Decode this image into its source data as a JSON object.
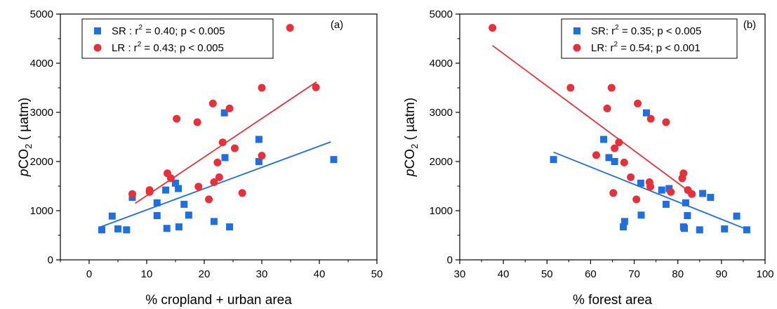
{
  "chart_data": [
    {
      "type": "scatter",
      "panel_label": "(a)",
      "xlabel": "% cropland + urban area",
      "ylabel_italic": "p",
      "ylabel_main": "CO",
      "ylabel_sub": "2",
      "ylabel_unit": " ( µatm)",
      "xlim": [
        -5,
        50
      ],
      "ylim": [
        0,
        5000
      ],
      "xticks": [
        "0",
        "10",
        "20",
        "30",
        "40",
        "50"
      ],
      "yticks": [
        "0",
        "1000",
        "2000",
        "3000",
        "4000",
        "5000"
      ],
      "xtick_values": [
        0,
        10,
        20,
        30,
        40,
        50
      ],
      "ytick_values": [
        0,
        1000,
        2000,
        3000,
        4000,
        5000
      ],
      "legend_position": "top-left",
      "series": [
        {
          "name": "SR",
          "marker": "square",
          "color": "#1f6fe0",
          "legend_label": {
            "prefix": "SR : r",
            "sup": "2",
            "suffix": " = 0.40; p < 0.005"
          },
          "x": [
            2.2,
            4,
            5,
            6.5,
            7.5,
            11.8,
            11.8,
            13.3,
            13.5,
            15,
            15.5,
            15.6,
            16.5,
            17.3,
            21.7,
            23.5,
            23.6,
            24.4,
            29.5,
            29.5,
            42.5
          ],
          "y": [
            610,
            890,
            630,
            610,
            1270,
            1160,
            900,
            1420,
            640,
            1560,
            1450,
            670,
            1130,
            910,
            780,
            2990,
            2080,
            670,
            2450,
            2000,
            2040
          ],
          "fit": {
            "x": [
              2,
              42
            ],
            "y": [
              670,
              2400
            ]
          }
        },
        {
          "name": "LR",
          "marker": "circle",
          "color": "#e8303a",
          "legend_label": {
            "prefix": "LR : r",
            "sup": "2",
            "suffix": " = 0.43; p < 0.005"
          },
          "x": [
            7.5,
            10.5,
            10.5,
            13.6,
            14.2,
            15.2,
            18.8,
            19,
            20.8,
            21.5,
            21.7,
            22.3,
            22.6,
            23.2,
            24.4,
            25.3,
            26.6,
            30,
            30,
            34.9,
            39.4
          ],
          "y": [
            1340,
            1380,
            1420,
            1760,
            1660,
            2870,
            2800,
            1490,
            1230,
            3180,
            1580,
            1980,
            1680,
            2390,
            3080,
            2270,
            1360,
            3500,
            2120,
            4720,
            3510
          ],
          "fit": {
            "x": [
              8,
              39.5
            ],
            "y": [
              1150,
              3620
            ]
          }
        }
      ]
    },
    {
      "type": "scatter",
      "panel_label": "(b)",
      "xlabel": "% forest area",
      "ylabel_italic": "p",
      "ylabel_main": "CO",
      "ylabel_sub": "2",
      "ylabel_unit": " ( µatm)",
      "xlim": [
        30,
        100
      ],
      "ylim": [
        0,
        5000
      ],
      "xticks": [
        "30",
        "40",
        "50",
        "60",
        "70",
        "80",
        "90",
        "100"
      ],
      "yticks": [
        "0",
        "1000",
        "2000",
        "3000",
        "4000",
        "5000"
      ],
      "xtick_values": [
        30,
        40,
        50,
        60,
        70,
        80,
        90,
        100
      ],
      "ytick_values": [
        0,
        1000,
        2000,
        3000,
        4000,
        5000
      ],
      "legend_position": "top-right",
      "series": [
        {
          "name": "SR",
          "marker": "square",
          "color": "#1f6fe0",
          "legend_label": {
            "prefix": "SR: r",
            "sup": "2",
            "suffix": " = 0.35; p < 0.005"
          },
          "x": [
            51.5,
            63,
            64.2,
            65.5,
            67.5,
            67.8,
            71.5,
            71.6,
            72.8,
            76.3,
            77.3,
            78,
            81.3,
            81.5,
            81.8,
            82.2,
            85,
            85.7,
            87.5,
            90.7,
            93.5,
            95.8
          ],
          "y": [
            2040,
            2450,
            2080,
            2000,
            670,
            780,
            1560,
            910,
            2990,
            1420,
            1130,
            1450,
            670,
            640,
            1160,
            900,
            610,
            1350,
            1270,
            630,
            890,
            610
          ],
          "fit": {
            "x": [
              51.5,
              95.8
            ],
            "y": [
              2190,
              620
            ]
          }
        },
        {
          "name": "LR",
          "marker": "circle",
          "color": "#e8303a",
          "legend_label": {
            "prefix": "LR: r",
            "sup": "2",
            "suffix": " = 0.54; p < 0.001"
          },
          "x": [
            37.5,
            55.4,
            61.3,
            63.8,
            64.8,
            65.2,
            65.5,
            66.5,
            67.7,
            69.2,
            70.5,
            70.8,
            73.5,
            73.7,
            73.8,
            77.3,
            78.4,
            81,
            81.3,
            82.3,
            83.2
          ],
          "y": [
            4720,
            3500,
            2130,
            3080,
            3500,
            1360,
            2270,
            2390,
            1980,
            1680,
            1230,
            3180,
            1580,
            1490,
            2870,
            2800,
            1380,
            1660,
            1760,
            1420,
            1340
          ],
          "fit": {
            "x": [
              37.5,
              84
            ],
            "y": [
              4360,
              1300
            ]
          }
        }
      ]
    }
  ]
}
